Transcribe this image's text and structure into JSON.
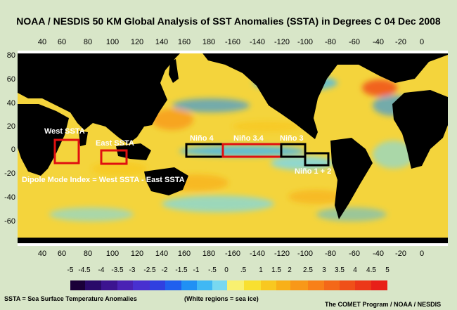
{
  "title": "NOAA / NESDIS 50 KM Global Analysis of SST Anomalies (SSTA) in Degrees C  04 Dec 2008",
  "map": {
    "x_tick_labels": [
      "40",
      "60",
      "80",
      "100",
      "120",
      "140",
      "160",
      "180",
      "-160",
      "-140",
      "-120",
      "-100",
      "-80",
      "-60",
      "-40",
      "-20",
      "0"
    ],
    "y_tick_labels": [
      "80",
      "60",
      "40",
      "20",
      "0",
      "-20",
      "-40",
      "-60"
    ],
    "regions": [
      {
        "label": "West SSTA",
        "color": "#e01010"
      },
      {
        "label": "East SSTA",
        "color": "#e01010"
      },
      {
        "label": "Niño 4",
        "color": "#000000"
      },
      {
        "label": "Niño 3.4",
        "color": "#e01010"
      },
      {
        "label": "Niño 3",
        "color": "#000000"
      },
      {
        "label": "Niño 1 + 2",
        "color": "#000000"
      }
    ],
    "dipole_label": "Dipole Mode Index = West SSTA - East SSTA",
    "land_color": "#000000",
    "ocean_base_color": "#f4d43c"
  },
  "colorbar": {
    "labels": [
      "-5",
      "-4.5",
      "-4",
      "-3.5",
      "-3",
      "-2.5",
      "-2",
      "-1.5",
      "-1",
      "-.5",
      "0",
      ".5",
      "1",
      "1.5",
      "2",
      "2.5",
      "3",
      "3.5",
      "4",
      "4.5",
      "5"
    ],
    "colors": [
      "#1a0038",
      "#2a0a6a",
      "#3c1490",
      "#4a22b4",
      "#4830d0",
      "#3040e0",
      "#2060ee",
      "#2090f4",
      "#40b8f4",
      "#78d8f0",
      "#f8f070",
      "#f8e030",
      "#f8c820",
      "#f8b018",
      "#f89818",
      "#f88018",
      "#f46818",
      "#f05018",
      "#ec3818",
      "#e82018"
    ]
  },
  "footer": {
    "ssta_note": "SSTA = Sea Surface Temperature Anomalies",
    "ice_note": "(White regions = sea ice)",
    "credit": "The COMET Program / NOAA / NESDIS"
  }
}
